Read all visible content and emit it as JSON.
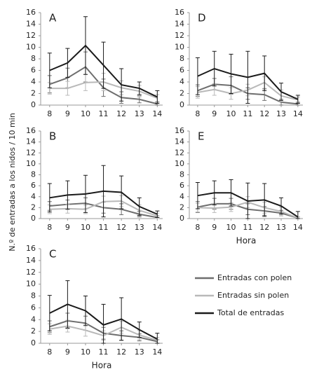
{
  "y_label": "N.º de entradas a los nidos / 10 min",
  "chart_data": [
    {
      "type": "line",
      "title": "A",
      "x": [
        8,
        9,
        10,
        11,
        12,
        13,
        14
      ],
      "xlim": [
        7.5,
        14.3
      ],
      "xticks": [
        8,
        9,
        10,
        11,
        12,
        13,
        14
      ],
      "ylim": [
        0,
        16
      ],
      "yticks": [
        0,
        2,
        4,
        6,
        8,
        10,
        12,
        14,
        16
      ],
      "series": [
        {
          "name": "Entradas con polen",
          "color": "#6e6e6e",
          "values": [
            3.6,
            4.7,
            6.6,
            3,
            1.3,
            1,
            0.2
          ],
          "errors": [
            1.5,
            1.7,
            2.6,
            1.5,
            1,
            0.6,
            0.3
          ]
        },
        {
          "name": "Entradas sin polen",
          "color": "#b9b9b9",
          "values": [
            2.9,
            2.9,
            3.9,
            4,
            3,
            2.4,
            1.2
          ],
          "errors": [
            1,
            1.2,
            1.4,
            1.5,
            1.2,
            1,
            0.6
          ]
        },
        {
          "name": "Total de entradas",
          "color": "#1a1a1a",
          "values": [
            6,
            7.3,
            10.3,
            6.9,
            3.5,
            2.9,
            1.4
          ],
          "errors": [
            3,
            2.5,
            5,
            4,
            2.8,
            1.1,
            1.1
          ]
        }
      ]
    },
    {
      "type": "line",
      "title": "B",
      "x": [
        8,
        9,
        10,
        11,
        12,
        13,
        14
      ],
      "xlim": [
        7.5,
        14.3
      ],
      "xticks": [
        8,
        9,
        10,
        11,
        12,
        13,
        14
      ],
      "ylim": [
        0,
        16
      ],
      "yticks": [
        0,
        2,
        4,
        6,
        8,
        10,
        12,
        14,
        16
      ],
      "series": [
        {
          "name": "Entradas con polen",
          "color": "#6e6e6e",
          "values": [
            2.3,
            2.6,
            2.8,
            2,
            1.7,
            0.8,
            0.2
          ],
          "errors": [
            0.8,
            0.8,
            1,
            1,
            1,
            0.5,
            0.3
          ]
        },
        {
          "name": "Entradas sin polen",
          "color": "#b9b9b9",
          "values": [
            1.7,
            1.8,
            1.7,
            3.1,
            3.2,
            1.5,
            0.5
          ],
          "errors": [
            0.8,
            0.8,
            0.8,
            1,
            1,
            1,
            0.5
          ]
        },
        {
          "name": "Total de entradas",
          "color": "#1a1a1a",
          "values": [
            3.8,
            4.3,
            4.5,
            5,
            4.8,
            2.2,
            0.8
          ],
          "errors": [
            2.6,
            2.6,
            3.4,
            4.7,
            3,
            1.6,
            0.6
          ]
        }
      ]
    },
    {
      "type": "line",
      "title": "C",
      "xlabel": "Hora",
      "x": [
        8,
        9,
        10,
        11,
        12,
        13,
        14
      ],
      "xlim": [
        7.5,
        14.3
      ],
      "xticks": [
        8,
        9,
        10,
        11,
        12,
        13,
        14
      ],
      "ylim": [
        0,
        16
      ],
      "yticks": [
        0,
        2,
        4,
        6,
        8,
        10,
        12,
        14,
        16
      ],
      "series": [
        {
          "name": "Entradas con polen",
          "color": "#6e6e6e",
          "values": [
            2.8,
            3.8,
            3.4,
            1.7,
            1.3,
            1,
            0.3
          ],
          "errors": [
            1,
            1.3,
            1.2,
            1,
            0.8,
            0.6,
            0.3
          ]
        },
        {
          "name": "Entradas sin polen",
          "color": "#b9b9b9",
          "values": [
            2.4,
            2.9,
            2.2,
            1.3,
            2.7,
            1.4,
            0.5
          ],
          "errors": [
            0.9,
            1,
            1,
            0.8,
            1,
            0.8,
            0.5
          ]
        },
        {
          "name": "Total de entradas",
          "color": "#1a1a1a",
          "values": [
            5.1,
            6.6,
            5.5,
            3.1,
            4.1,
            2.3,
            0.7
          ],
          "errors": [
            3,
            4,
            2.5,
            3.5,
            3.6,
            1.3,
            1
          ]
        }
      ]
    },
    {
      "type": "line",
      "title": "D",
      "x": [
        8,
        9,
        10,
        11,
        12,
        13,
        14
      ],
      "xlim": [
        7.5,
        14.3
      ],
      "xticks": [
        8,
        9,
        10,
        11,
        12,
        13,
        14
      ],
      "ylim": [
        0,
        16
      ],
      "yticks": [
        0,
        2,
        4,
        6,
        8,
        10,
        12,
        14,
        16
      ],
      "series": [
        {
          "name": "Entradas con polen",
          "color": "#6e6e6e",
          "values": [
            2.5,
            3.6,
            3.4,
            2,
            1.8,
            0.5,
            0.2
          ],
          "errors": [
            1,
            1,
            1.5,
            1,
            1,
            0.5,
            0.3
          ]
        },
        {
          "name": "Entradas sin polen",
          "color": "#b9b9b9",
          "values": [
            2.2,
            2.7,
            2,
            2.6,
            3.9,
            1.6,
            0.9
          ],
          "errors": [
            1,
            1,
            1,
            1,
            1,
            1,
            0.5
          ]
        },
        {
          "name": "Total de entradas",
          "color": "#1a1a1a",
          "values": [
            5,
            6.3,
            5.4,
            4.8,
            5.5,
            2.3,
            1
          ],
          "errors": [
            3.2,
            3,
            3.4,
            4.5,
            3,
            1.5,
            0.7
          ]
        }
      ]
    },
    {
      "type": "line",
      "title": "E",
      "xlabel": "Hora",
      "x": [
        8,
        9,
        10,
        11,
        12,
        13,
        14
      ],
      "xlim": [
        7.5,
        14.3
      ],
      "xticks": [
        8,
        9,
        10,
        11,
        12,
        13,
        14
      ],
      "ylim": [
        0,
        16
      ],
      "yticks": [
        0,
        2,
        4,
        6,
        8,
        10,
        12,
        14,
        16
      ],
      "series": [
        {
          "name": "Entradas con polen",
          "color": "#6e6e6e",
          "values": [
            2.1,
            2.7,
            2.7,
            1.7,
            1.4,
            1,
            0.1
          ],
          "errors": [
            1,
            1,
            1,
            1,
            0.8,
            0.5,
            0.2
          ]
        },
        {
          "name": "Entradas sin polen",
          "color": "#b9b9b9",
          "values": [
            2,
            1.9,
            2.1,
            3,
            2,
            1.3,
            0.1
          ],
          "errors": [
            0.8,
            0.8,
            0.8,
            1,
            1,
            0.8,
            0.2
          ]
        },
        {
          "name": "Total de entradas",
          "color": "#1a1a1a",
          "values": [
            4.2,
            4.7,
            4.7,
            3.2,
            3.4,
            2.3,
            0.3
          ],
          "errors": [
            2.4,
            2.2,
            2.4,
            3.3,
            3,
            1.5,
            1
          ]
        }
      ]
    }
  ]
}
